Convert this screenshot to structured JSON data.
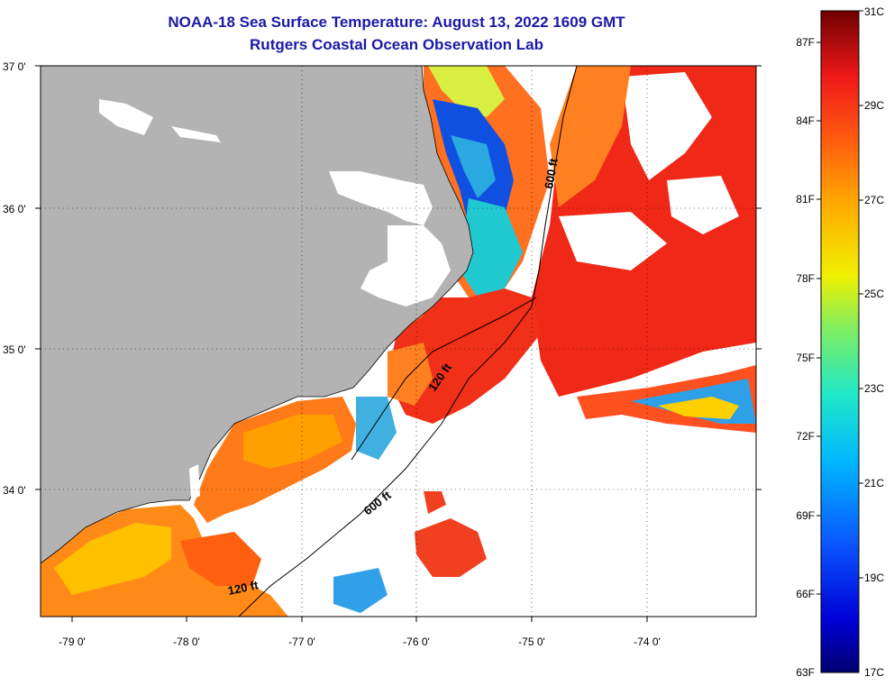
{
  "title_line1": "NOAA-18 Sea Surface Temperature:  August 13, 2022 1609 GMT",
  "title_line2": "Rutgers Coastal Ocean Observation Lab",
  "lat_labels": [
    "37 0'",
    "36 0'",
    "35 0'",
    "34 0'"
  ],
  "lon_labels": [
    "-79 0'",
    "-78 0'",
    "-77 0'",
    "-76 0'",
    "-75 0'",
    "-74 0'"
  ],
  "contour_labels": [
    "600 ft",
    "120 ft",
    "600 ft",
    "120 ft"
  ],
  "colorbar": {
    "f_labels": [
      "87F",
      "84F",
      "81F",
      "78F",
      "75F",
      "72F",
      "69F",
      "66F",
      "63F"
    ],
    "c_labels": [
      "31C",
      "29C",
      "27C",
      "25C",
      "23C",
      "21C",
      "19C",
      "17C"
    ]
  },
  "colors": {
    "land": "#b3b3b3",
    "cloud": "#ffffff",
    "title": "#1a1aa8"
  }
}
